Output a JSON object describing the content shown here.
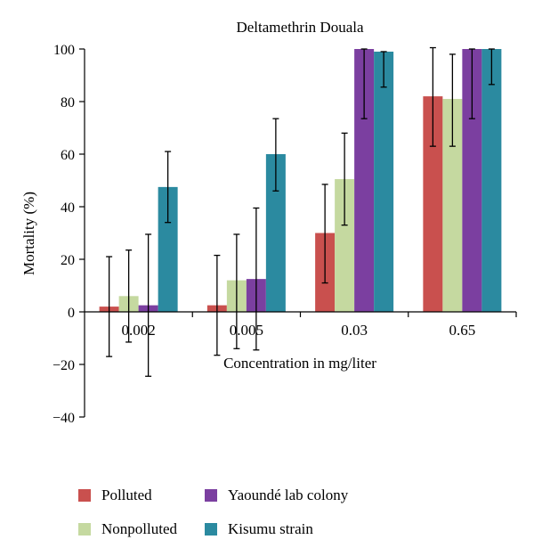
{
  "chart_data": {
    "type": "bar",
    "title": "Deltamethrin Douala",
    "xlabel": "Concentration in mg/liter",
    "ylabel": "Mortality (%)",
    "ylim": [
      -40,
      100
    ],
    "yticks": [
      "100",
      "80",
      "60",
      "40",
      "20",
      "0",
      "−20",
      "−40"
    ],
    "yticks_values": [
      100,
      80,
      60,
      40,
      20,
      0,
      -20,
      -40
    ],
    "categories": [
      "0.002",
      "0.005",
      "0.03",
      "0.65"
    ],
    "series": [
      {
        "name": "Polluted",
        "color": "#c9504e",
        "values": [
          2,
          2.5,
          30,
          82
        ],
        "err_low": [
          -17,
          -16.5,
          11,
          63
        ],
        "err_high": [
          21,
          21.5,
          48.5,
          100.5
        ]
      },
      {
        "name": "Nonpolluted",
        "color": "#c5d9a0",
        "values": [
          6,
          12,
          50.5,
          81
        ],
        "err_low": [
          -11.5,
          -14,
          33,
          63
        ],
        "err_high": [
          23.5,
          29.5,
          68,
          98
        ]
      },
      {
        "name": "Yaoundé lab colony",
        "color": "#7b3fa0",
        "values": [
          2.5,
          12.5,
          100,
          100
        ],
        "err_low": [
          -24.5,
          -14.5,
          73.5,
          73.5
        ],
        "err_high": [
          29.5,
          39.5,
          100,
          100
        ]
      },
      {
        "name": "Kisumu strain",
        "color": "#2b8aa0",
        "values": [
          47.5,
          60,
          99,
          100
        ],
        "err_low": [
          34,
          46,
          85.5,
          86.5
        ],
        "err_high": [
          61,
          73.5,
          99,
          100
        ]
      }
    ],
    "grid": false,
    "legend_position": "bottom"
  }
}
